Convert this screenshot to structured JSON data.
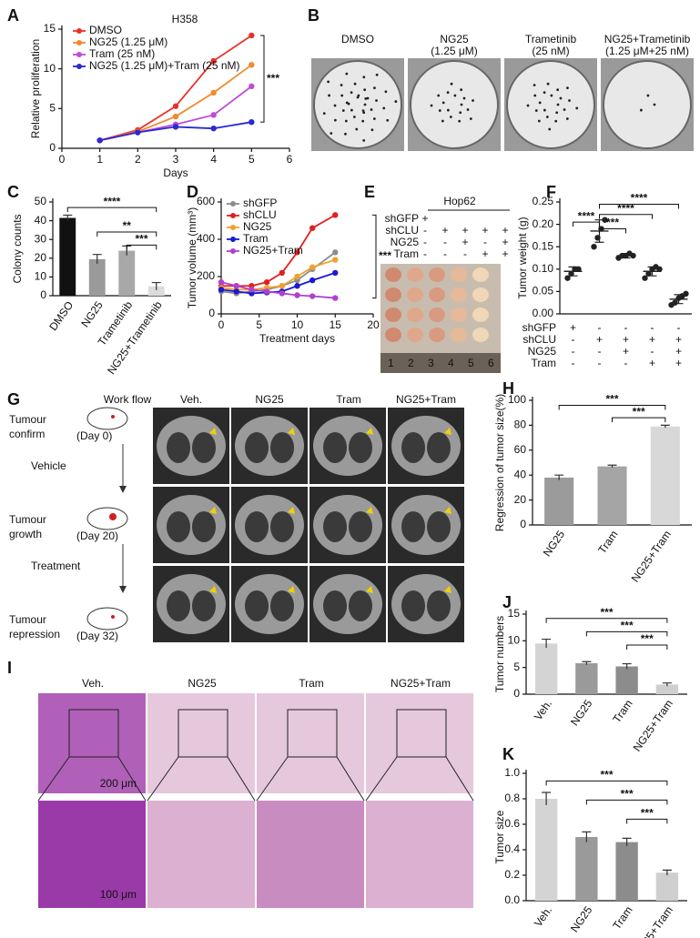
{
  "chart_data": [
    {
      "panel": "A",
      "type": "line",
      "title": "H358",
      "x_label": "Days",
      "y_label": "Relative proliferation",
      "x": [
        1,
        2,
        3,
        4,
        5
      ],
      "xlim": [
        0,
        6
      ],
      "xticks": [
        0,
        1,
        2,
        3,
        4,
        5,
        6
      ],
      "ylim": [
        0,
        15
      ],
      "yticks": [
        0,
        5,
        10,
        15
      ],
      "legend": "top-left",
      "series": [
        {
          "name": "DMSO",
          "color": "#e8322b",
          "values": [
            1,
            2.3,
            5.3,
            11,
            14.2
          ]
        },
        {
          "name": "NG25 (1.25 μM)",
          "color": "#f08a2c",
          "values": [
            1,
            2.1,
            4,
            7,
            10.5
          ]
        },
        {
          "name": "Tram (25 nM)",
          "color": "#c04bd8",
          "values": [
            1,
            2,
            3,
            4.2,
            7.8
          ]
        },
        {
          "name": "NG25 (1.25 μM)+Tram (25 nM)",
          "color": "#2a2ad0",
          "values": [
            1,
            2,
            2.7,
            2.5,
            3.3
          ]
        }
      ],
      "annotations": [
        "***"
      ]
    },
    {
      "panel": "C",
      "type": "bar",
      "y_label": "Colony counts",
      "categories": [
        "DMSO",
        "NG25",
        "Trametinib",
        "NG25+Trametinib"
      ],
      "values": [
        41.5,
        19.5,
        24,
        5
      ],
      "errors": [
        1.5,
        2.5,
        2.5,
        2
      ],
      "colors": [
        "#111111",
        "#9a9a9a",
        "#a8a8a8",
        "#dcdcdc"
      ],
      "ylim": [
        0,
        50
      ],
      "yticks": [
        0,
        10,
        20,
        30,
        40,
        50
      ],
      "annotations": [
        "****",
        "**",
        "***"
      ]
    },
    {
      "panel": "D",
      "type": "line",
      "x_label": "Treatment days",
      "y_label": "Tumor volume (mm³)",
      "x": [
        0,
        2,
        4,
        6,
        8,
        10,
        12,
        15
      ],
      "xlim": [
        0,
        20
      ],
      "xticks": [
        0,
        5,
        10,
        15,
        20
      ],
      "ylim": [
        0,
        600
      ],
      "yticks": [
        0,
        200,
        400,
        600
      ],
      "legend": "top-left",
      "series": [
        {
          "name": "shGFP",
          "color": "#8c8c8c",
          "values": [
            120,
            110,
            120,
            130,
            150,
            180,
            240,
            330
          ]
        },
        {
          "name": "shCLU",
          "color": "#e02020",
          "values": [
            150,
            150,
            150,
            170,
            220,
            330,
            460,
            530
          ]
        },
        {
          "name": "NG25",
          "color": "#f0a030",
          "values": [
            140,
            130,
            130,
            140,
            150,
            200,
            250,
            290
          ]
        },
        {
          "name": "Tram",
          "color": "#1a1ad0",
          "values": [
            130,
            120,
            110,
            115,
            120,
            150,
            180,
            220
          ]
        },
        {
          "name": "NG25+Tram",
          "color": "#b040d0",
          "values": [
            170,
            150,
            130,
            120,
            110,
            100,
            95,
            85
          ]
        }
      ],
      "annotations": [
        "***"
      ]
    },
    {
      "panel": "F",
      "type": "strip",
      "y_label": "Tumor weight (g)",
      "color": "#222222",
      "points": [
        [
          0.08,
          0.09,
          0.1,
          0.1
        ],
        [
          0.15,
          0.17,
          0.19,
          0.21
        ],
        [
          0.125,
          0.13,
          0.13,
          0.135,
          0.13
        ],
        [
          0.08,
          0.09,
          0.1,
          0.105,
          0.1
        ],
        [
          0.02,
          0.025,
          0.035,
          0.04,
          0.045
        ]
      ],
      "means": [
        0.095,
        0.185,
        0.13,
        0.095,
        0.033
      ],
      "errors": [
        0.01,
        0.025,
        0.005,
        0.01,
        0.01
      ],
      "ylim": [
        0,
        0.25
      ],
      "yticks": [
        {
          "value": 0,
          "label": "0.00"
        },
        0.05,
        {
          "value": 0.1,
          "label": "0.10"
        },
        0.15,
        {
          "value": 0.2,
          "label": "0.20"
        },
        0.25
      ],
      "conditions": [
        {
          "name": "shGFP",
          "signs": [
            "+",
            "-",
            "-",
            "-",
            "-"
          ]
        },
        {
          "name": "shCLU",
          "signs": [
            "-",
            "+",
            "+",
            "+",
            "+"
          ]
        },
        {
          "name": "NG25",
          "signs": [
            "-",
            "-",
            "+",
            "-",
            "+"
          ]
        },
        {
          "name": "Tram",
          "signs": [
            "-",
            "-",
            "-",
            "+",
            "+"
          ]
        }
      ],
      "annotations": [
        "****",
        "***",
        "****",
        "****"
      ]
    },
    {
      "panel": "H",
      "type": "bar",
      "y_label": "Regression of tumor size(%)",
      "categories": [
        "NG25",
        "Tram",
        "NG25+Tram"
      ],
      "values": [
        38,
        47,
        79
      ],
      "errors": [
        2,
        1,
        1
      ],
      "colors": [
        "#9b9b9b",
        "#a5a5a5",
        "#d8d8d8"
      ],
      "ylim": [
        0,
        100
      ],
      "yticks": [
        0,
        20,
        40,
        60,
        80,
        100
      ],
      "annotations": [
        "***",
        "***"
      ]
    },
    {
      "panel": "J",
      "type": "bar",
      "y_label": "Tumor numbers",
      "categories": [
        "Veh.",
        "NG25",
        "Tram",
        "NG25+Tram"
      ],
      "values": [
        9.5,
        5.8,
        5.2,
        1.8
      ],
      "errors": [
        0.8,
        0.3,
        0.5,
        0.3
      ],
      "colors": [
        "#d4d4d4",
        "#9a9a9a",
        "#8c8c8c",
        "#cfcfcf"
      ],
      "ylim": [
        0,
        15
      ],
      "yticks": [
        0,
        5,
        10,
        15
      ],
      "annotations": [
        "***",
        "***",
        "***"
      ]
    },
    {
      "panel": "K",
      "type": "bar",
      "y_label": "Tumor size",
      "categories": [
        "Veh.",
        "NG25",
        "Tram",
        "NG25+Tram"
      ],
      "values": [
        0.8,
        0.5,
        0.46,
        0.22
      ],
      "errors": [
        0.05,
        0.04,
        0.03,
        0.02
      ],
      "colors": [
        "#d4d4d4",
        "#9a9a9a",
        "#8c8c8c",
        "#cfcfcf"
      ],
      "ylim": [
        0,
        1
      ],
      "yticks": [
        {
          "value": 0,
          "label": "0.0"
        },
        0.2,
        0.4,
        0.6,
        0.8,
        {
          "value": 1,
          "label": "1.0"
        }
      ],
      "annotations": [
        "***",
        "***",
        "***"
      ]
    }
  ],
  "images": {
    "B": {
      "panel": "B",
      "plates": [
        {
          "name": "DMSO"
        },
        {
          "name": "NG25",
          "dose": "(1.25 μM)"
        },
        {
          "name": "Trametinib",
          "dose": "(25 nM)"
        },
        {
          "name": "NG25+Trametinib",
          "dose": "(1.25 μM+25 nM)"
        }
      ]
    },
    "E": {
      "panel": "E",
      "title": "Hop62",
      "rows": [
        {
          "name": "shGFP",
          "signs": [
            "+"
          ]
        },
        {
          "name": "shCLU",
          "signs": [
            "-",
            "+",
            "+",
            "+",
            "+"
          ]
        },
        {
          "name": "NG25",
          "signs": [
            "-",
            "-",
            "+",
            "-",
            "+"
          ]
        },
        {
          "name": "Tram",
          "signs": [
            "-",
            "-",
            "-",
            "+",
            "+"
          ]
        }
      ],
      "ruler": [
        "1",
        "2",
        "3",
        "4",
        "5",
        "6"
      ]
    },
    "G": {
      "panel": "G",
      "columns": [
        "Work flow",
        "Veh.",
        "NG25",
        "Tram",
        "NG25+Tram"
      ],
      "stages": [
        {
          "name": [
            "Tumour",
            "confirm"
          ],
          "day": "(Day 0)"
        },
        {
          "name": [
            "Tumour",
            "growth"
          ],
          "day": "(Day 20)"
        },
        {
          "name": [
            "Tumour",
            "repression"
          ],
          "day": "(Day 32)"
        }
      ],
      "steps": [
        "Vehicle",
        "Treatment"
      ]
    },
    "I": {
      "panel": "I",
      "columns": [
        "Veh.",
        "NG25",
        "Tram",
        "NG25+Tram"
      ],
      "scale_bars": [
        "200 μm",
        "100 μm"
      ]
    }
  }
}
